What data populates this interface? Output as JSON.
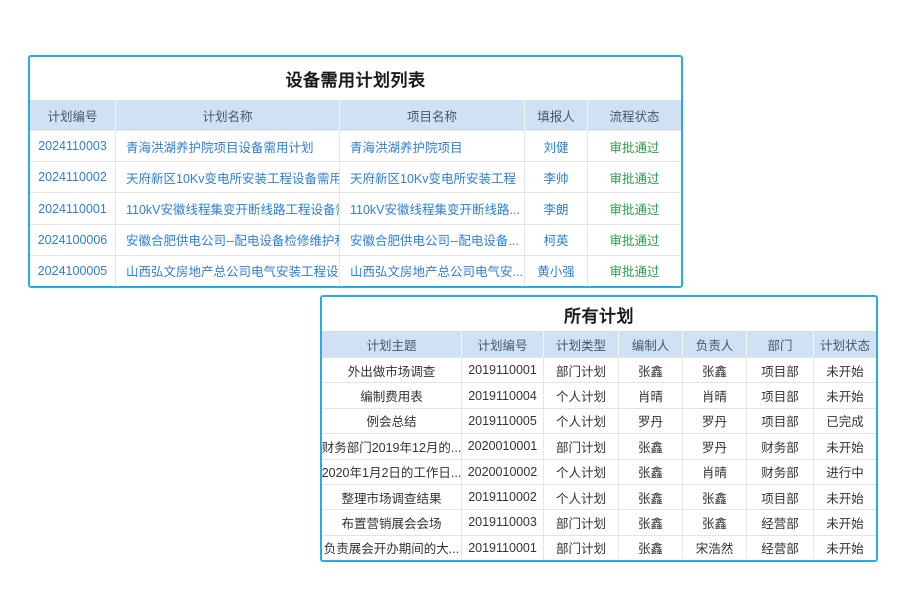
{
  "colors": {
    "panel_border": "#2aabe2",
    "header_bg": "#cfe1f3",
    "header_text": "#44586c",
    "link_blue": "#2e7fd2",
    "status_green": "#2ba24a",
    "body_text": "#333333"
  },
  "equipment_table": {
    "title": "设备需用计划列表",
    "columns": {
      "id": "计划编号",
      "plan_name": "计划名称",
      "project_name": "项目名称",
      "reporter": "填报人",
      "status": "流程状态"
    },
    "rows": [
      {
        "id": "2024110003",
        "plan_name": "青海洪湖养护院项目设备需用计划",
        "project_name": "青海洪湖养护院项目",
        "reporter": "刘健",
        "status": "审批通过"
      },
      {
        "id": "2024110002",
        "plan_name": "天府新区10Kv变电所安装工程设备需用...",
        "project_name": "天府新区10Kv变电所安装工程",
        "reporter": "李帅",
        "status": "审批通过"
      },
      {
        "id": "2024110001",
        "plan_name": "110kV安徽线程集变开断线路工程设备需...",
        "project_name": "110kV安徽线程集变开断线路...",
        "reporter": "李朗",
        "status": "审批通过"
      },
      {
        "id": "2024100006",
        "plan_name": "安徽合肥供电公司--配电设备检修维护和...",
        "project_name": "安徽合肥供电公司--配电设备...",
        "reporter": "柯英",
        "status": "审批通过"
      },
      {
        "id": "2024100005",
        "plan_name": "山西弘文房地产总公司电气安装工程设备...",
        "project_name": "山西弘文房地产总公司电气安...",
        "reporter": "黄小强",
        "status": "审批通过"
      }
    ]
  },
  "all_plans_table": {
    "title": "所有计划",
    "columns": {
      "subject": "计划主题",
      "id": "计划编号",
      "type": "计划类型",
      "creator": "编制人",
      "owner": "负责人",
      "dept": "部门",
      "status": "计划状态"
    },
    "rows": [
      {
        "subject": "外出做市场调查",
        "id": "2019110001",
        "type": "部门计划",
        "creator": "张鑫",
        "owner": "张鑫",
        "dept": "项目部",
        "status": "未开始"
      },
      {
        "subject": "编制费用表",
        "id": "2019110004",
        "type": "个人计划",
        "creator": "肖晴",
        "owner": "肖晴",
        "dept": "项目部",
        "status": "未开始"
      },
      {
        "subject": "例会总结",
        "id": "2019110005",
        "type": "个人计划",
        "creator": "罗丹",
        "owner": "罗丹",
        "dept": "项目部",
        "status": "已完成"
      },
      {
        "subject": "财务部门2019年12月的...",
        "id": "2020010001",
        "type": "部门计划",
        "creator": "张鑫",
        "owner": "罗丹",
        "dept": "财务部",
        "status": "未开始"
      },
      {
        "subject": "2020年1月2日的工作日...",
        "id": "2020010002",
        "type": "个人计划",
        "creator": "张鑫",
        "owner": "肖晴",
        "dept": "财务部",
        "status": "进行中"
      },
      {
        "subject": "整理市场调查结果",
        "id": "2019110002",
        "type": "个人计划",
        "creator": "张鑫",
        "owner": "张鑫",
        "dept": "项目部",
        "status": "未开始"
      },
      {
        "subject": "布置营销展会会场",
        "id": "2019110003",
        "type": "部门计划",
        "creator": "张鑫",
        "owner": "张鑫",
        "dept": "经营部",
        "status": "未开始"
      },
      {
        "subject": "负责展会开办期间的大...",
        "id": "2019110001",
        "type": "部门计划",
        "creator": "张鑫",
        "owner": "宋浩然",
        "dept": "经营部",
        "status": "未开始"
      }
    ]
  }
}
